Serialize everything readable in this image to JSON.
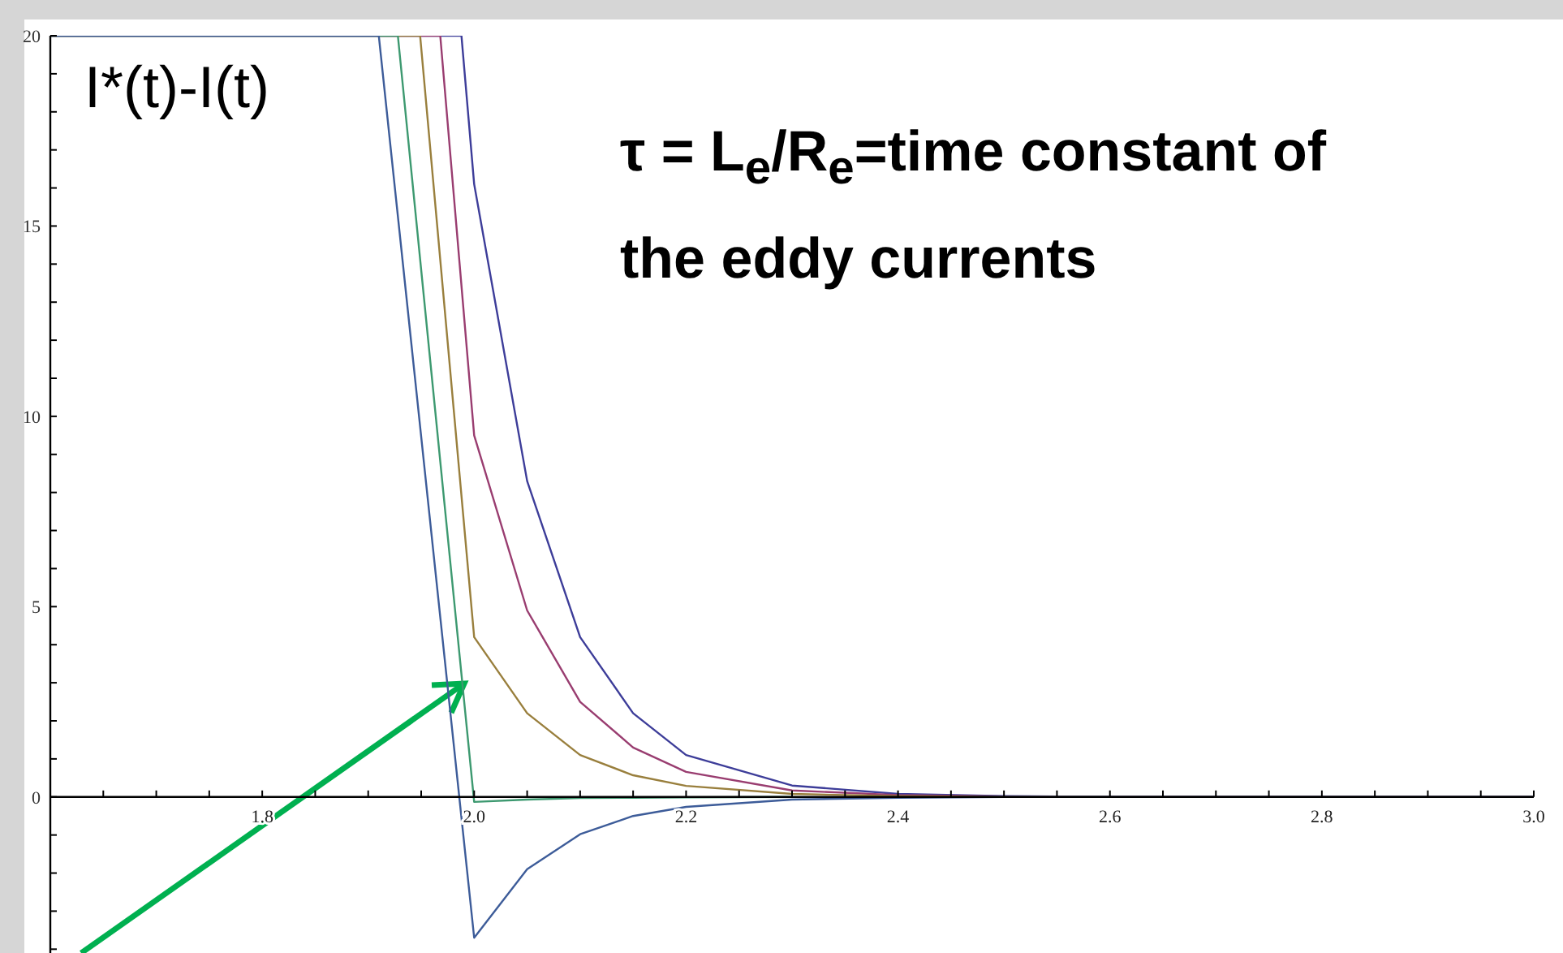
{
  "chart_data": {
    "type": "line",
    "annotations": [
      "I*(t)-I(t)",
      "τ = L$_{e}$/R$_{e}$=time constant of the eddy currents"
    ],
    "xlim": [
      1.6,
      3.0
    ],
    "xticks": [
      {
        "value": 1.65,
        "label": null
      },
      {
        "value": 1.7,
        "label": null
      },
      {
        "value": 1.75,
        "label": null
      },
      1.8,
      {
        "value": 1.85,
        "label": null
      },
      {
        "value": 1.9,
        "label": null
      },
      {
        "value": 1.95,
        "label": null
      },
      {
        "value": 2,
        "label": "2.0"
      },
      {
        "value": 2.05,
        "label": null
      },
      {
        "value": 2.1,
        "label": null
      },
      {
        "value": 2.15,
        "label": null
      },
      2.2,
      {
        "value": 2.25,
        "label": null
      },
      {
        "value": 2.3,
        "label": null
      },
      {
        "value": 2.35,
        "label": null
      },
      2.4,
      {
        "value": 2.45,
        "label": null
      },
      {
        "value": 2.5,
        "label": null
      },
      {
        "value": 2.55,
        "label": null
      },
      2.6,
      {
        "value": 2.65,
        "label": null
      },
      {
        "value": 2.7,
        "label": null
      },
      {
        "value": 2.75,
        "label": null
      },
      2.8,
      {
        "value": 2.85,
        "label": null
      },
      {
        "value": 2.9,
        "label": null
      },
      {
        "value": 2.95,
        "label": null
      },
      {
        "value": 3,
        "label": "3.0"
      }
    ],
    "ylim": [
      -4.1,
      20
    ],
    "yticks": [
      {
        "value": -4,
        "label": null
      },
      {
        "value": -3,
        "label": null
      },
      {
        "value": -2,
        "label": null
      },
      {
        "value": -1,
        "label": null
      },
      0,
      {
        "value": 1,
        "label": null
      },
      {
        "value": 2,
        "label": null
      },
      {
        "value": 3,
        "label": null
      },
      {
        "value": 4,
        "label": null
      },
      5,
      {
        "value": 6,
        "label": null
      },
      {
        "value": 7,
        "label": null
      },
      {
        "value": 8,
        "label": null
      },
      {
        "value": 9,
        "label": null
      },
      10,
      {
        "value": 11,
        "label": null
      },
      {
        "value": 12,
        "label": null
      },
      {
        "value": 13,
        "label": null
      },
      {
        "value": 14,
        "label": null
      },
      15,
      {
        "value": 16,
        "label": null
      },
      {
        "value": 17,
        "label": null
      },
      {
        "value": 18,
        "label": null
      },
      {
        "value": 19,
        "label": null
      },
      20
    ],
    "grid": false,
    "marker": "none",
    "line_style": "solid",
    "series": [
      {
        "color": "#3d3d99",
        "x": [
          1.6,
          1.988,
          2.0,
          2.05,
          2.1,
          2.15,
          2.2,
          2.3,
          2.4,
          2.5,
          2.6,
          3.0
        ],
        "values": [
          20,
          20,
          16.1,
          8.3,
          4.2,
          2.2,
          1.1,
          0.3,
          0.08,
          0.02,
          0,
          0
        ]
      },
      {
        "color": "#993d70",
        "x": [
          1.6,
          1.968,
          2.0,
          2.05,
          2.1,
          2.15,
          2.2,
          2.3,
          2.4,
          2.5,
          2.6,
          3.0
        ],
        "values": [
          20,
          20,
          9.5,
          4.9,
          2.5,
          1.3,
          0.66,
          0.17,
          0.05,
          0.01,
          0,
          0
        ]
      },
      {
        "color": "#997f3d",
        "x": [
          1.6,
          1.949,
          2.0,
          2.05,
          2.1,
          2.15,
          2.2,
          2.3,
          2.4,
          2.5,
          2.6,
          3.0
        ],
        "values": [
          20,
          20,
          4.2,
          2.2,
          1.1,
          0.57,
          0.29,
          0.08,
          0.02,
          0,
          0,
          0
        ]
      },
      {
        "color": "#3d9970",
        "x": [
          1.6,
          1.928,
          2.0,
          2.05,
          2.1,
          2.15,
          2.2,
          2.3
        ],
        "values": [
          20,
          20,
          -0.13,
          -0.07,
          -0.03,
          -0.02,
          -0.01,
          0
        ]
      },
      {
        "color": "#3d5c99",
        "x": [
          1.6,
          1.91,
          2.0,
          2.05,
          2.1,
          2.15,
          2.2,
          2.3,
          2.4,
          2.5,
          2.6,
          3.0
        ],
        "values": [
          20,
          20,
          -3.7,
          -1.9,
          -0.98,
          -0.5,
          -0.26,
          -0.07,
          -0.02,
          0,
          0,
          0
        ]
      }
    ]
  }
}
